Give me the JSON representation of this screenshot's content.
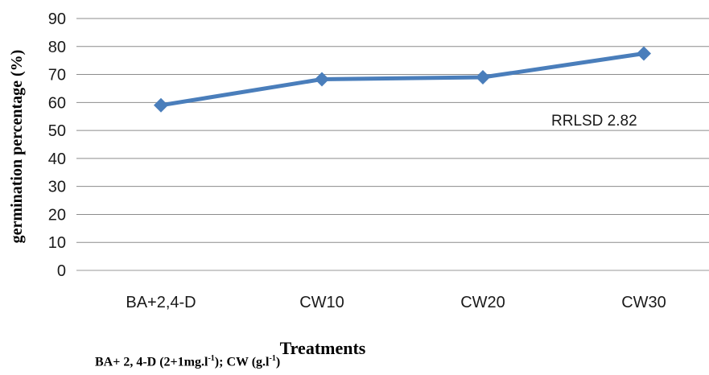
{
  "chart_data": {
    "type": "line",
    "categories": [
      "BA+2,4-D",
      "CW10",
      "CW20",
      "CW30"
    ],
    "series": [
      {
        "values": [
          59,
          68.3,
          69,
          77.5
        ],
        "color": "#4a7ebb",
        "marker": "diamond"
      }
    ],
    "title": "",
    "xlabel": "Treatments",
    "ylabel": "germination percentage (%)",
    "ylim": [
      0,
      90
    ],
    "yticks": [
      0,
      10,
      20,
      30,
      40,
      50,
      60,
      70,
      80,
      90
    ],
    "grid": true,
    "annotation": "RRLSD 2.82"
  },
  "caption": {
    "part1": "BA+ 2, 4-D (2+1mg.l",
    "sup1": "-1",
    "part2": "); CW (g.l",
    "sup2": "-1",
    "part3": ")"
  }
}
